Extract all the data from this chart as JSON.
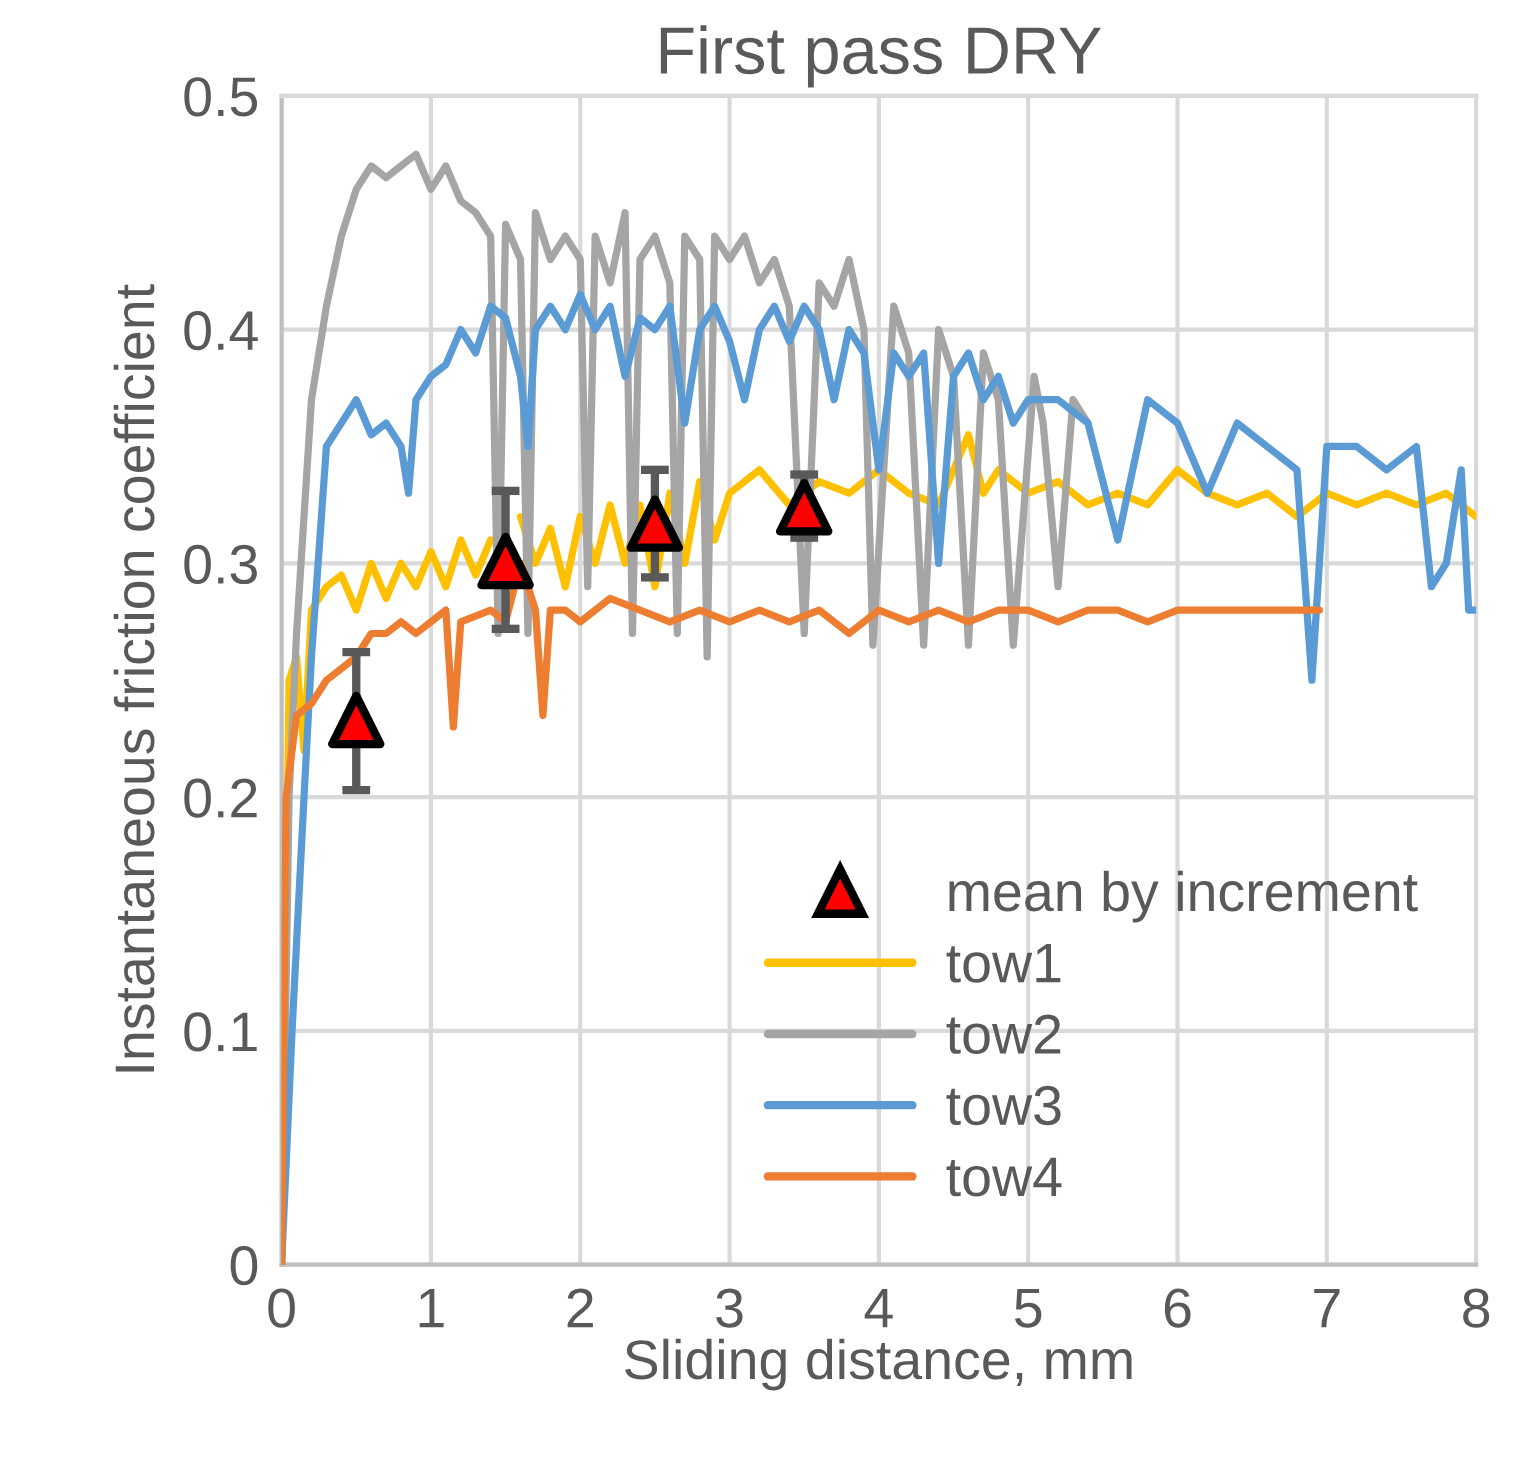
{
  "chart_data": {
    "type": "line",
    "title": "First pass DRY",
    "xlabel": "Sliding distance, mm",
    "ylabel": "Instantaneous friction coefficient",
    "xlim": [
      0,
      8
    ],
    "xticks": [
      0,
      1,
      2,
      3,
      4,
      5,
      6,
      7,
      8
    ],
    "ylim": [
      0,
      0.5
    ],
    "yticks": [
      0,
      0.1,
      0.2,
      0.3,
      0.4,
      0.5
    ],
    "grid": true,
    "legend": "bottom right",
    "series": [
      {
        "name": "mean by increment",
        "type": "scatter",
        "marker": "triangle",
        "color": "#ff0000",
        "x": [
          0.5,
          1.5,
          2.5,
          3.5
        ],
        "values": [
          0.233,
          0.301,
          0.317,
          0.324
        ],
        "errors": [
          [
            0.203,
            0.262
          ],
          [
            0.272,
            0.331
          ],
          [
            0.294,
            0.34
          ],
          [
            0.311,
            0.338
          ]
        ]
      },
      {
        "name": "tow1",
        "color": "#ffc000",
        "x": [
          0,
          0.05,
          0.1,
          0.15,
          0.2,
          0.3,
          0.4,
          0.5,
          0.6,
          0.7,
          0.8,
          0.9,
          1.0,
          1.1,
          1.2,
          1.3,
          1.4,
          1.5,
          1.6,
          1.7,
          1.8,
          1.9,
          2.0,
          2.1,
          2.2,
          2.3,
          2.4,
          2.5,
          2.6,
          2.7,
          2.8,
          2.9,
          3.0,
          3.2,
          3.4,
          3.6,
          3.8,
          4.0,
          4.2,
          4.4,
          4.6,
          4.7,
          4.8,
          5.0,
          5.2,
          5.4,
          5.6,
          5.8,
          6.0,
          6.2,
          6.4,
          6.6,
          6.8,
          7.0,
          7.2,
          7.4,
          7.6,
          7.8,
          8.0
        ],
        "values": [
          0,
          0.25,
          0.26,
          0.22,
          0.28,
          0.29,
          0.295,
          0.28,
          0.3,
          0.285,
          0.3,
          0.29,
          0.305,
          0.29,
          0.31,
          0.295,
          0.31,
          null,
          0.32,
          0.3,
          0.315,
          0.29,
          0.32,
          0.3,
          0.325,
          0.3,
          0.325,
          0.29,
          0.33,
          0.3,
          0.335,
          0.31,
          0.33,
          0.34,
          0.325,
          0.335,
          0.33,
          0.34,
          0.33,
          0.325,
          0.355,
          0.33,
          0.34,
          0.33,
          0.335,
          0.325,
          0.33,
          0.325,
          0.34,
          0.33,
          0.325,
          0.33,
          0.32,
          0.33,
          0.325,
          0.33,
          0.325,
          0.33,
          0.32
        ]
      },
      {
        "name": "tow2",
        "color": "#a5a5a5",
        "x": [
          0,
          0.05,
          0.1,
          0.15,
          0.2,
          0.3,
          0.4,
          0.5,
          0.6,
          0.7,
          0.8,
          0.9,
          1.0,
          1.1,
          1.2,
          1.3,
          1.4,
          1.45,
          1.5,
          1.6,
          1.65,
          1.7,
          1.8,
          1.9,
          2.0,
          2.05,
          2.1,
          2.2,
          2.3,
          2.35,
          2.4,
          2.5,
          2.6,
          2.65,
          2.7,
          2.8,
          2.85,
          2.9,
          3.0,
          3.1,
          3.2,
          3.3,
          3.4,
          3.5,
          3.6,
          3.7,
          3.8,
          3.9,
          3.96,
          4.1,
          4.2,
          4.3,
          4.4,
          4.5,
          4.6,
          4.7,
          4.8,
          4.9,
          5.04,
          5.1,
          5.2,
          5.3,
          5.4
        ],
        "values": [
          0,
          0.2,
          0.27,
          0.32,
          0.37,
          0.41,
          0.44,
          0.46,
          0.47,
          0.465,
          0.47,
          0.475,
          0.46,
          0.47,
          0.455,
          0.45,
          0.44,
          0.27,
          0.445,
          0.43,
          0.27,
          0.45,
          0.43,
          0.44,
          0.43,
          0.29,
          0.44,
          0.42,
          0.45,
          0.27,
          0.43,
          0.44,
          0.42,
          0.27,
          0.44,
          0.43,
          0.26,
          0.44,
          0.43,
          0.44,
          0.42,
          0.43,
          0.41,
          0.27,
          0.42,
          0.41,
          0.43,
          0.4,
          0.265,
          0.41,
          0.39,
          0.265,
          0.4,
          0.38,
          0.265,
          0.39,
          0.37,
          0.265,
          0.38,
          0.36,
          0.29,
          0.37,
          0.36
        ]
      },
      {
        "name": "tow3",
        "color": "#5b9bd5",
        "x": [
          0,
          0.07,
          0.15,
          0.2,
          0.3,
          0.4,
          0.5,
          0.6,
          0.7,
          0.8,
          0.85,
          0.9,
          1.0,
          1.1,
          1.2,
          1.3,
          1.4,
          1.5,
          1.6,
          1.65,
          1.7,
          1.8,
          1.9,
          2.0,
          2.1,
          2.2,
          2.3,
          2.4,
          2.5,
          2.6,
          2.7,
          2.8,
          2.9,
          3.0,
          3.1,
          3.2,
          3.3,
          3.4,
          3.5,
          3.6,
          3.7,
          3.8,
          3.9,
          4.0,
          4.1,
          4.2,
          4.3,
          4.4,
          4.5,
          4.6,
          4.7,
          4.8,
          4.9,
          5.0,
          5.2,
          5.4,
          5.6,
          5.8,
          6.0,
          6.2,
          6.4,
          6.6,
          6.8,
          6.9,
          7.0,
          7.2,
          7.4,
          7.6,
          7.7,
          7.8,
          7.9,
          7.95,
          8.0
        ],
        "values": [
          0,
          0.1,
          0.2,
          0.26,
          0.35,
          0.36,
          0.37,
          0.355,
          0.36,
          0.35,
          0.33,
          0.37,
          0.38,
          0.385,
          0.4,
          0.39,
          0.41,
          0.405,
          0.38,
          0.35,
          0.4,
          0.41,
          0.4,
          0.415,
          0.4,
          0.41,
          0.38,
          0.405,
          0.4,
          0.41,
          0.36,
          0.4,
          0.41,
          0.395,
          0.37,
          0.4,
          0.41,
          0.395,
          0.41,
          0.4,
          0.37,
          0.4,
          0.39,
          0.34,
          0.39,
          0.38,
          0.39,
          0.3,
          0.38,
          0.39,
          0.37,
          0.38,
          0.36,
          0.37,
          0.37,
          0.36,
          0.31,
          0.37,
          0.36,
          0.33,
          0.36,
          0.35,
          0.34,
          0.25,
          0.35,
          0.35,
          0.34,
          0.35,
          0.29,
          0.3,
          0.34,
          0.28,
          0.28
        ]
      },
      {
        "name": "tow4",
        "color": "#ed7d31",
        "x": [
          0,
          0.03,
          0.1,
          0.2,
          0.3,
          0.4,
          0.5,
          0.6,
          0.7,
          0.8,
          0.9,
          1.0,
          1.1,
          1.15,
          1.2,
          1.4,
          1.5,
          1.6,
          1.7,
          1.75,
          1.8,
          1.9,
          2.0,
          2.2,
          2.4,
          2.6,
          2.8,
          3.0,
          3.2,
          3.4,
          3.6,
          3.8,
          4.0,
          4.2,
          4.4,
          4.6,
          4.8,
          5.0,
          5.2,
          5.4,
          5.6,
          5.8,
          6.0,
          6.2,
          6.4,
          6.6,
          6.8,
          6.95
        ],
        "values": [
          0,
          0.2,
          0.235,
          0.24,
          0.25,
          0.255,
          0.26,
          0.27,
          0.27,
          0.275,
          0.27,
          0.275,
          0.28,
          0.23,
          0.275,
          0.28,
          0.275,
          0.3,
          0.28,
          0.235,
          0.28,
          0.28,
          0.275,
          0.285,
          0.28,
          0.275,
          0.28,
          0.275,
          0.28,
          0.275,
          0.28,
          0.27,
          0.28,
          0.275,
          0.28,
          0.275,
          0.28,
          0.28,
          0.275,
          0.28,
          0.28,
          0.275,
          0.28,
          0.28,
          0.28,
          0.28,
          0.28,
          0.28
        ]
      }
    ]
  }
}
